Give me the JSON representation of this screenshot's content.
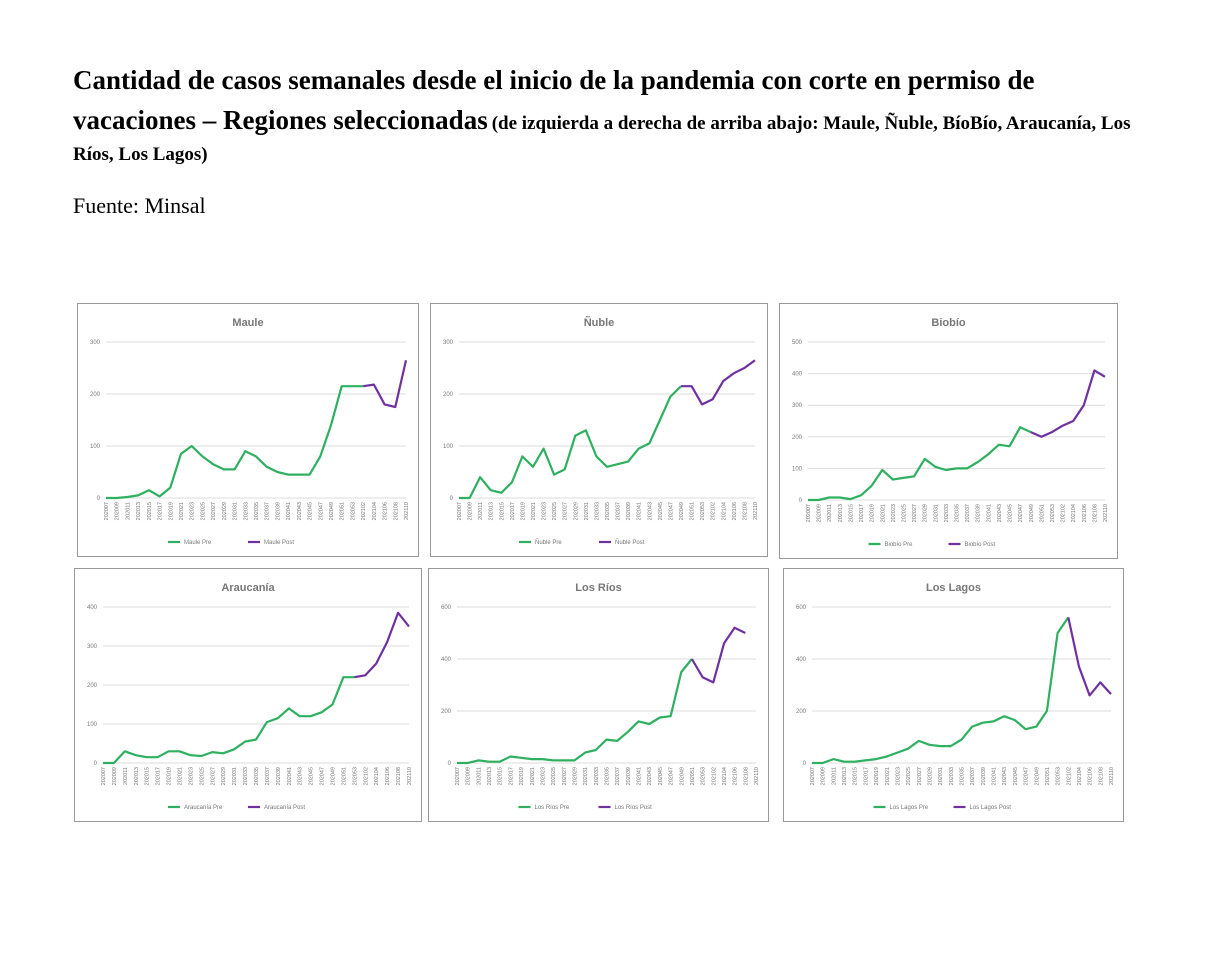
{
  "header": {
    "title": "Cantidad de casos semanales desde el inicio de la pandemia con corte en permiso de vacaciones – Regiones seleccionadas",
    "subtitle": "(de izquierda a derecha de arriba abajo: Maule, Ñuble, BíoBío, Araucanía, Los Ríos, Los Lagos)",
    "source": "Fuente: Minsal"
  },
  "chart_data": [
    {
      "type": "line",
      "title": "Maule",
      "categories": [
        "202007",
        "202009",
        "202011",
        "202013",
        "202015",
        "202017",
        "202019",
        "202021",
        "202023",
        "202025",
        "202027",
        "202029",
        "202031",
        "202033",
        "202035",
        "202037",
        "202039",
        "202041",
        "202043",
        "202045",
        "202047",
        "202049",
        "202051",
        "202053",
        "202102",
        "202104",
        "202106",
        "202108",
        "202110"
      ],
      "series": [
        {
          "name": "Maule Pre",
          "color": "#2eb060",
          "values": [
            0,
            0,
            2,
            5,
            15,
            3,
            20,
            85,
            100,
            80,
            65,
            55,
            55,
            90,
            80,
            60,
            50,
            45,
            45,
            45,
            80,
            140,
            215,
            215,
            215,
            null,
            null,
            null,
            null
          ]
        },
        {
          "name": "Maule Post",
          "color": "#7030a0",
          "values": [
            null,
            null,
            null,
            null,
            null,
            null,
            null,
            null,
            null,
            null,
            null,
            null,
            null,
            null,
            null,
            null,
            null,
            null,
            null,
            null,
            null,
            null,
            null,
            null,
            215,
            218,
            180,
            175,
            265
          ]
        }
      ],
      "ylim": [
        0,
        300
      ],
      "yticks": [
        0,
        100,
        200,
        300
      ]
    },
    {
      "type": "line",
      "title": "Ñuble",
      "categories": [
        "202007",
        "202009",
        "202011",
        "202013",
        "202015",
        "202017",
        "202019",
        "202021",
        "202023",
        "202025",
        "202027",
        "202029",
        "202031",
        "202033",
        "202035",
        "202037",
        "202039",
        "202041",
        "202043",
        "202045",
        "202047",
        "202049",
        "202051",
        "202053",
        "202102",
        "202104",
        "202106",
        "202108",
        "202110"
      ],
      "series": [
        {
          "name": "Ñuble Pre",
          "color": "#2eb060",
          "values": [
            0,
            0,
            40,
            15,
            10,
            30,
            80,
            60,
            95,
            45,
            55,
            120,
            130,
            80,
            60,
            65,
            70,
            95,
            105,
            150,
            195,
            215,
            null,
            null,
            null,
            null,
            null,
            null,
            null
          ]
        },
        {
          "name": "Ñuble Post",
          "color": "#7030a0",
          "values": [
            null,
            null,
            null,
            null,
            null,
            null,
            null,
            null,
            null,
            null,
            null,
            null,
            null,
            null,
            null,
            null,
            null,
            null,
            null,
            null,
            null,
            215,
            215,
            180,
            190,
            225,
            240,
            250,
            265
          ]
        }
      ],
      "ylim": [
        0,
        300
      ],
      "yticks": [
        0,
        100,
        200,
        300
      ]
    },
    {
      "type": "line",
      "title": "Biobío",
      "categories": [
        "202007",
        "202009",
        "202011",
        "202013",
        "202015",
        "202017",
        "202019",
        "202021",
        "202023",
        "202025",
        "202027",
        "202029",
        "202031",
        "202033",
        "202035",
        "202037",
        "202039",
        "202041",
        "202043",
        "202045",
        "202047",
        "202049",
        "202051",
        "202053",
        "202102",
        "202104",
        "202106",
        "202108",
        "202110"
      ],
      "series": [
        {
          "name": "Biobío Pre",
          "color": "#2eb060",
          "values": [
            0,
            0,
            8,
            8,
            3,
            15,
            45,
            95,
            65,
            70,
            75,
            130,
            105,
            95,
            100,
            100,
            120,
            145,
            175,
            170,
            230,
            215,
            null,
            null,
            null,
            null,
            null,
            null,
            null
          ]
        },
        {
          "name": "Biobío Post",
          "color": "#7030a0",
          "values": [
            null,
            null,
            null,
            null,
            null,
            null,
            null,
            null,
            null,
            null,
            null,
            null,
            null,
            null,
            null,
            null,
            null,
            null,
            null,
            null,
            null,
            215,
            200,
            215,
            235,
            250,
            300,
            410,
            390
          ]
        }
      ],
      "ylim": [
        0,
        500
      ],
      "yticks": [
        0,
        100,
        200,
        300,
        400,
        500
      ]
    },
    {
      "type": "line",
      "title": "Araucanía",
      "categories": [
        "202007",
        "202009",
        "202011",
        "202013",
        "202015",
        "202017",
        "202019",
        "202021",
        "202023",
        "202025",
        "202027",
        "202029",
        "202031",
        "202033",
        "202035",
        "202037",
        "202039",
        "202041",
        "202043",
        "202045",
        "202047",
        "202049",
        "202051",
        "202053",
        "202102",
        "202104",
        "202106",
        "202108",
        "202110"
      ],
      "series": [
        {
          "name": "Araucanía Pre",
          "color": "#2eb060",
          "values": [
            0,
            0,
            30,
            20,
            15,
            15,
            30,
            30,
            20,
            18,
            28,
            25,
            35,
            55,
            60,
            105,
            115,
            140,
            120,
            120,
            130,
            150,
            220,
            220,
            null,
            null,
            null,
            null,
            null
          ]
        },
        {
          "name": "Araucanía Post",
          "color": "#7030a0",
          "values": [
            null,
            null,
            null,
            null,
            null,
            null,
            null,
            null,
            null,
            null,
            null,
            null,
            null,
            null,
            null,
            null,
            null,
            null,
            null,
            null,
            null,
            null,
            null,
            220,
            225,
            255,
            310,
            385,
            350
          ]
        }
      ],
      "ylim": [
        0,
        400
      ],
      "yticks": [
        0,
        100,
        200,
        300,
        400
      ]
    },
    {
      "type": "line",
      "title": "Los Ríos",
      "categories": [
        "202007",
        "202009",
        "202011",
        "202013",
        "202015",
        "202017",
        "202019",
        "202021",
        "202023",
        "202025",
        "202027",
        "202029",
        "202031",
        "202033",
        "202035",
        "202037",
        "202039",
        "202041",
        "202043",
        "202045",
        "202047",
        "202049",
        "202051",
        "202053",
        "202102",
        "202104",
        "202106",
        "202108",
        "202110"
      ],
      "series": [
        {
          "name": "Los Ríos Pre",
          "color": "#2eb060",
          "values": [
            0,
            0,
            10,
            5,
            5,
            25,
            20,
            15,
            15,
            10,
            10,
            10,
            40,
            50,
            90,
            85,
            120,
            160,
            150,
            175,
            180,
            350,
            400,
            null,
            null,
            null,
            null,
            null,
            null
          ]
        },
        {
          "name": "Los Ríos Post",
          "color": "#7030a0",
          "values": [
            null,
            null,
            null,
            null,
            null,
            null,
            null,
            null,
            null,
            null,
            null,
            null,
            null,
            null,
            null,
            null,
            null,
            null,
            null,
            null,
            null,
            null,
            400,
            330,
            310,
            460,
            520,
            500,
            null
          ]
        }
      ],
      "ylim": [
        0,
        600
      ],
      "yticks": [
        0,
        200,
        400,
        600
      ]
    },
    {
      "type": "line",
      "title": "Los Lagos",
      "categories": [
        "202007",
        "202009",
        "202011",
        "202013",
        "202015",
        "202017",
        "202019",
        "202021",
        "202023",
        "202025",
        "202027",
        "202029",
        "202031",
        "202033",
        "202035",
        "202037",
        "202039",
        "202041",
        "202043",
        "202045",
        "202047",
        "202049",
        "202051",
        "202053",
        "202102",
        "202104",
        "202106",
        "202108",
        "202110"
      ],
      "series": [
        {
          "name": "Los Lagos Pre",
          "color": "#2eb060",
          "values": [
            0,
            0,
            15,
            5,
            5,
            10,
            15,
            25,
            40,
            55,
            85,
            70,
            65,
            65,
            90,
            140,
            155,
            160,
            180,
            165,
            130,
            140,
            200,
            500,
            560,
            null,
            null,
            null,
            null
          ]
        },
        {
          "name": "Los Lagos Post",
          "color": "#7030a0",
          "values": [
            null,
            null,
            null,
            null,
            null,
            null,
            null,
            null,
            null,
            null,
            null,
            null,
            null,
            null,
            null,
            null,
            null,
            null,
            null,
            null,
            null,
            null,
            null,
            null,
            560,
            370,
            260,
            310,
            265
          ]
        }
      ],
      "ylim": [
        0,
        600
      ],
      "yticks": [
        0,
        200,
        400,
        600
      ]
    }
  ]
}
